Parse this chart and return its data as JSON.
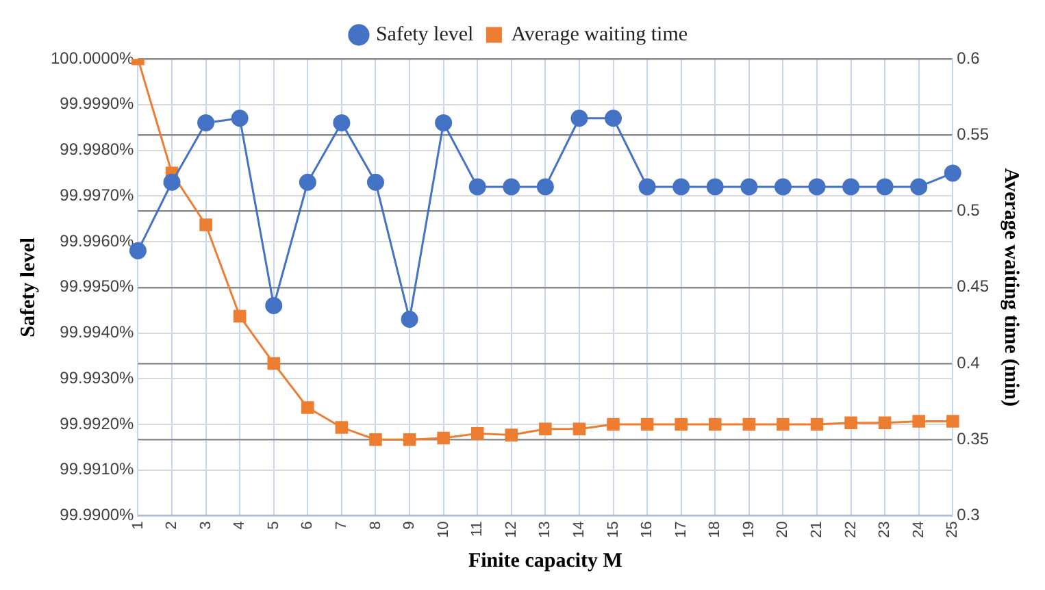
{
  "chart_data": {
    "type": "line",
    "xlabel": "Finite capacity M",
    "ylabel": "Safety level",
    "y2label": "Average waiting time (min)",
    "categories": [
      "1",
      "2",
      "3",
      "4",
      "5",
      "6",
      "7",
      "8",
      "9",
      "10",
      "11",
      "12",
      "13",
      "14",
      "15",
      "16",
      "17",
      "18",
      "19",
      "20",
      "21",
      "22",
      "23",
      "24",
      "25"
    ],
    "series": [
      {
        "name": "Safety level",
        "color": "#4472c4",
        "marker": "circle",
        "values": [
          99.9958,
          99.9973,
          99.9986,
          99.9987,
          99.9946,
          99.9973,
          99.9986,
          99.9973,
          99.9943,
          99.9986,
          99.9972,
          99.9972,
          99.9972,
          99.9987,
          99.9987,
          99.9972,
          99.9972,
          99.9972,
          99.9972,
          99.9972,
          99.9972,
          99.9972,
          99.9972,
          99.9972,
          99.9975
        ]
      },
      {
        "name": "Average waiting time",
        "color": "#ed7d31",
        "marker": "square",
        "axis": "y2",
        "values": [
          0.6,
          0.525,
          0.491,
          0.431,
          0.4,
          0.371,
          0.358,
          0.35,
          0.35,
          0.351,
          0.354,
          0.353,
          0.357,
          0.357,
          0.36,
          0.36,
          0.36,
          0.36,
          0.36,
          0.36,
          0.36,
          0.361,
          0.361,
          0.362,
          0.362
        ]
      }
    ],
    "ylim": [
      99.99,
      100
    ],
    "yticks": [
      {
        "value": 99.99,
        "label": "99.9900%"
      },
      {
        "value": 99.991,
        "label": "99.9910%"
      },
      {
        "value": 99.992,
        "label": "99.9920%"
      },
      {
        "value": 99.993,
        "label": "99.9930%"
      },
      {
        "value": 99.994,
        "label": "99.9940%"
      },
      {
        "value": 99.995,
        "label": "99.9950%"
      },
      {
        "value": 99.996,
        "label": "99.9960%"
      },
      {
        "value": 99.997,
        "label": "99.9970%"
      },
      {
        "value": 99.998,
        "label": "99.9980%"
      },
      {
        "value": 99.999,
        "label": "99.9990%"
      },
      {
        "value": 100,
        "label": "100.0000%"
      }
    ],
    "y2lim": [
      0.3,
      0.6
    ],
    "y2ticks": [
      0.3,
      0.35,
      0.4,
      0.45,
      0.5,
      0.55,
      0.6
    ],
    "grid": true,
    "legend": "top",
    "line_style": "solid"
  }
}
